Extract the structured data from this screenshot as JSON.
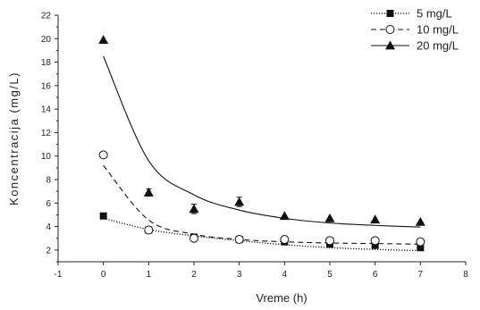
{
  "chart_data": {
    "type": "scatter",
    "xlabel": "Vreme (h)",
    "ylabel": "Koncentracija (mg/L)",
    "xlim": [
      -1,
      8
    ],
    "ylim": [
      1,
      22
    ],
    "xticks": [
      "-1",
      "0",
      "1",
      "2",
      "3",
      "4",
      "5",
      "6",
      "7",
      "8"
    ],
    "yticks": [
      "2",
      "4",
      "6",
      "8",
      "10",
      "12",
      "14",
      "16",
      "18",
      "20",
      "22"
    ],
    "legend_position": "top-right",
    "grid": false,
    "series": [
      {
        "name": "5 mg/L",
        "marker": "square-filled",
        "line_style": "dotted",
        "x": [
          0,
          1,
          2,
          3,
          4,
          5,
          6,
          7
        ],
        "y": [
          4.9,
          3.7,
          3.1,
          2.9,
          2.7,
          2.5,
          2.4,
          2.2
        ],
        "fit_y": [
          4.7,
          3.75,
          3.2,
          2.8,
          2.45,
          2.2,
          2.05,
          1.95
        ]
      },
      {
        "name": "10 mg/L",
        "marker": "circle-open",
        "line_style": "dashed",
        "x": [
          0,
          1,
          2,
          3,
          4,
          5,
          6,
          7
        ],
        "y": [
          10.1,
          3.7,
          3.0,
          2.9,
          2.9,
          2.8,
          2.8,
          2.7
        ],
        "fit_y": [
          9.2,
          4.55,
          3.35,
          2.9,
          2.7,
          2.6,
          2.55,
          2.5
        ]
      },
      {
        "name": "20 mg/L",
        "marker": "triangle-filled",
        "line_style": "solid",
        "x": [
          0,
          1,
          2,
          3,
          4,
          5,
          6,
          7
        ],
        "y": [
          19.9,
          6.9,
          5.5,
          6.1,
          4.9,
          4.7,
          4.6,
          4.4
        ],
        "err": [
          0,
          0.3,
          0.4,
          0.4,
          0,
          0,
          0,
          0
        ],
        "fit_y": [
          18.5,
          9.6,
          6.7,
          5.4,
          4.7,
          4.3,
          4.1,
          3.95
        ]
      }
    ]
  },
  "colors": {
    "series": "#111111",
    "axis": "#222222"
  }
}
